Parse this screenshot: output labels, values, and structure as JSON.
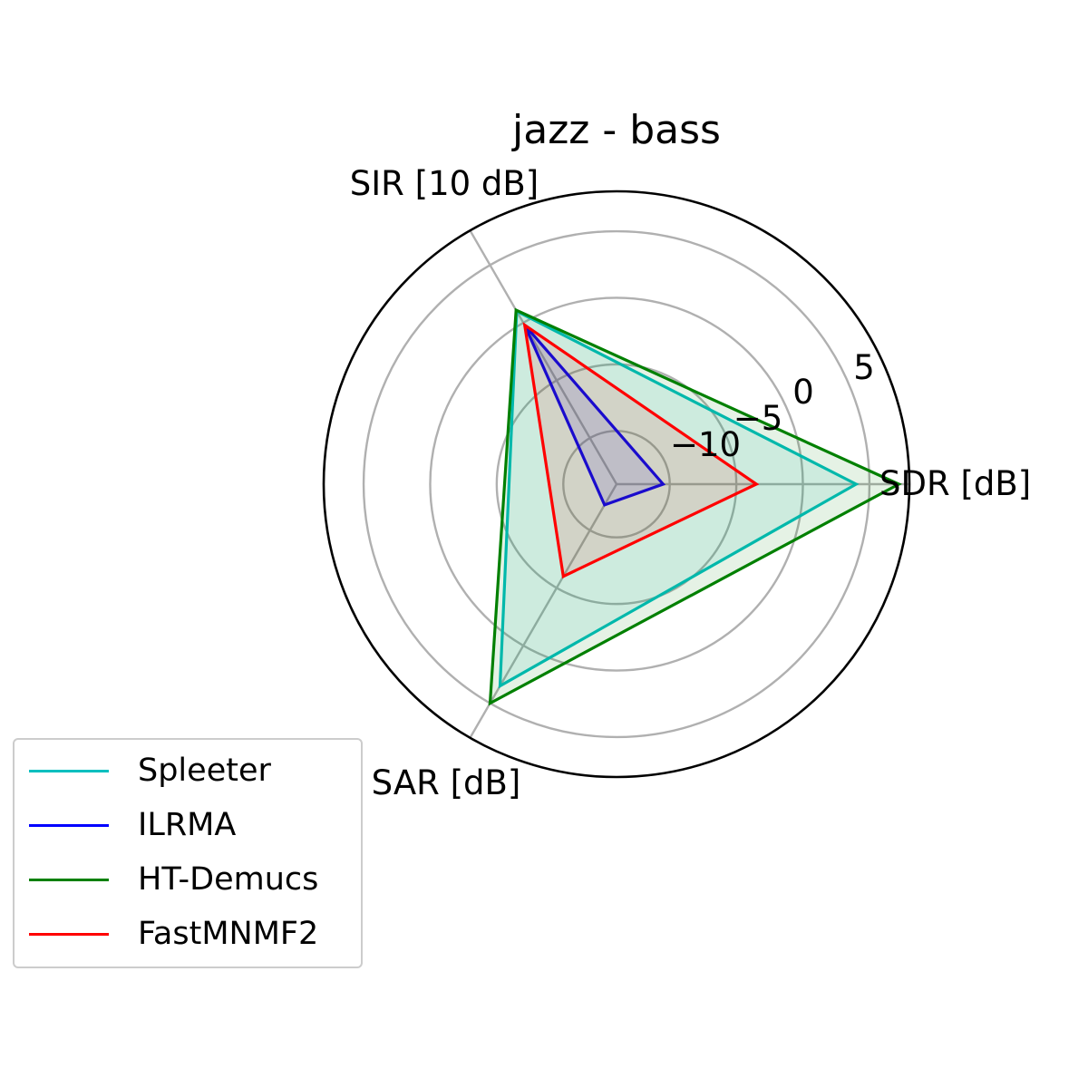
{
  "chart_data": {
    "type": "radar",
    "title": "jazz - bass",
    "axes": [
      "SDR [dB]",
      "SIR [10 dB]",
      "SAR [dB]"
    ],
    "radial_ticks": [
      "−10",
      "−5",
      "0",
      "5"
    ],
    "radial_tick_values": [
      -10,
      -5,
      0,
      5
    ],
    "r_range": [
      -14,
      8
    ],
    "grid": true,
    "legend_position": "lower-left",
    "series": [
      {
        "name": "Spleeter",
        "color": "#00bfbf",
        "values": [
          4.0,
          1.0,
          3.5
        ],
        "fill": true
      },
      {
        "name": "ILRMA",
        "color": "#0000ff",
        "values": [
          -10.5,
          -0.2,
          -12.2
        ],
        "fill": true
      },
      {
        "name": "HT-Demucs",
        "color": "#008000",
        "values": [
          7.2,
          1.1,
          5.0
        ],
        "fill": true
      },
      {
        "name": "FastMNMF2",
        "color": "#ff0000",
        "values": [
          -3.5,
          -0.2,
          -6.0
        ],
        "fill": true
      }
    ]
  }
}
